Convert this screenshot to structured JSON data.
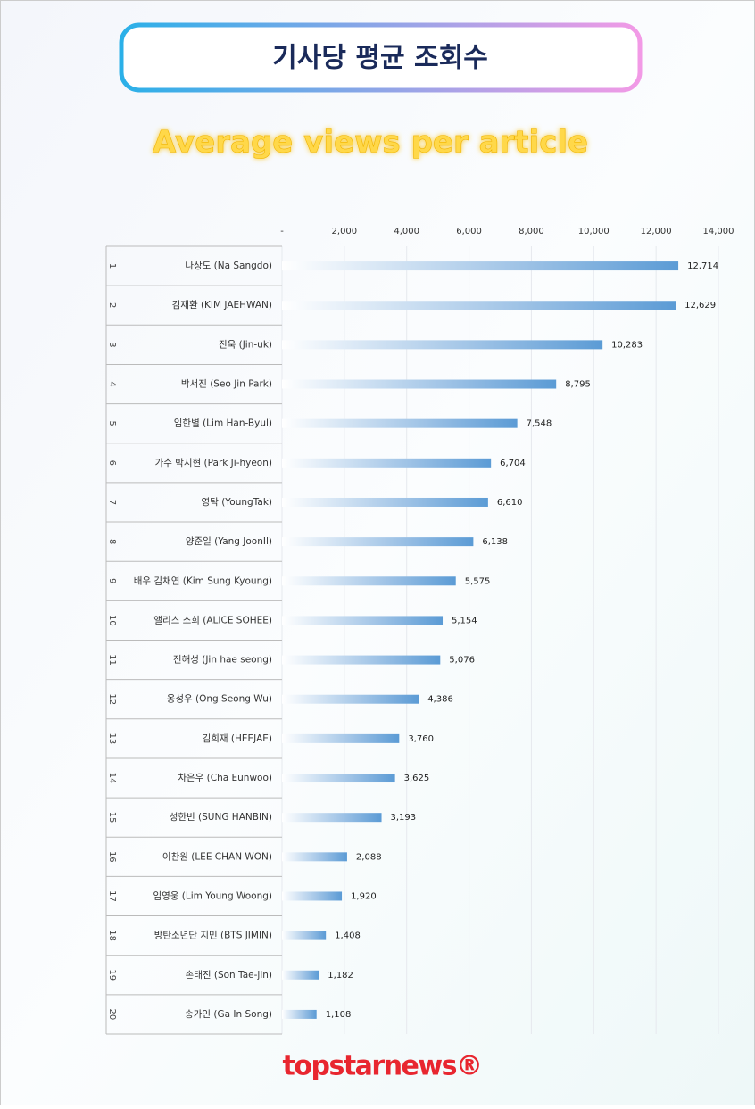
{
  "chart_data": {
    "type": "bar",
    "orientation": "horizontal",
    "title": "기사당 평균 조회수",
    "subtitle": "Average views per article",
    "logo": "topstarnews®",
    "ranks": [
      "1",
      "2",
      "3",
      "4",
      "5",
      "6",
      "7",
      "8",
      "9",
      "10",
      "11",
      "12",
      "13",
      "14",
      "15",
      "16",
      "17",
      "18",
      "19",
      "20"
    ],
    "categories": [
      "나상도 (Na Sangdo)",
      "김재환 (KIM JAEHWAN)",
      "진욱 (Jin-uk)",
      "박서진 (Seo Jin Park)",
      "임한별 (Lim Han-Byul)",
      "가수 박지현 (Park Ji-hyeon)",
      "영탁 (YoungTak)",
      "양준일 (Yang JoonIl)",
      "배우 김채연 (Kim Sung Kyoung)",
      "앨리스 소희 (ALICE SOHEE)",
      "진해성 (Jin hae seong)",
      "옹성우 (Ong Seong Wu)",
      "김희재 (HEEJAE)",
      "차은우 (Cha Eunwoo)",
      "성한빈 (SUNG HANBIN)",
      "이찬원 (LEE CHAN WON)",
      "임영웅 (Lim Young Woong)",
      "방탄소년단 지민 (BTS JIMIN)",
      "손태진 (Son Tae-jin)",
      "송가인 (Ga In Song)"
    ],
    "values": [
      12714,
      12629,
      10283,
      8795,
      7548,
      6704,
      6610,
      6138,
      5575,
      5154,
      5076,
      4386,
      3760,
      3625,
      3193,
      2088,
      1920,
      1408,
      1182,
      1108
    ],
    "value_labels": [
      "12,714",
      "12,629",
      "10,283",
      "8,795",
      "7,548",
      "6,704",
      "6,610",
      "6,138",
      "5,575",
      "5,154",
      "5,076",
      "4,386",
      "3,760",
      "3,625",
      "3,193",
      "2,088",
      "1,920",
      "1,408",
      "1,182",
      "1,108"
    ],
    "color": "#5b9bd5",
    "xlim": [
      0,
      14000
    ],
    "xticks": [
      {
        "value": 0,
        "label": "-"
      },
      {
        "value": 2000,
        "label": "2,000"
      },
      {
        "value": 4000,
        "label": "4,000"
      },
      {
        "value": 6000,
        "label": "6,000"
      },
      {
        "value": 8000,
        "label": "8,000"
      },
      {
        "value": 10000,
        "label": "10,000"
      },
      {
        "value": 12000,
        "label": "12,000"
      },
      {
        "value": 14000,
        "label": "14,000"
      }
    ],
    "grid": true
  }
}
